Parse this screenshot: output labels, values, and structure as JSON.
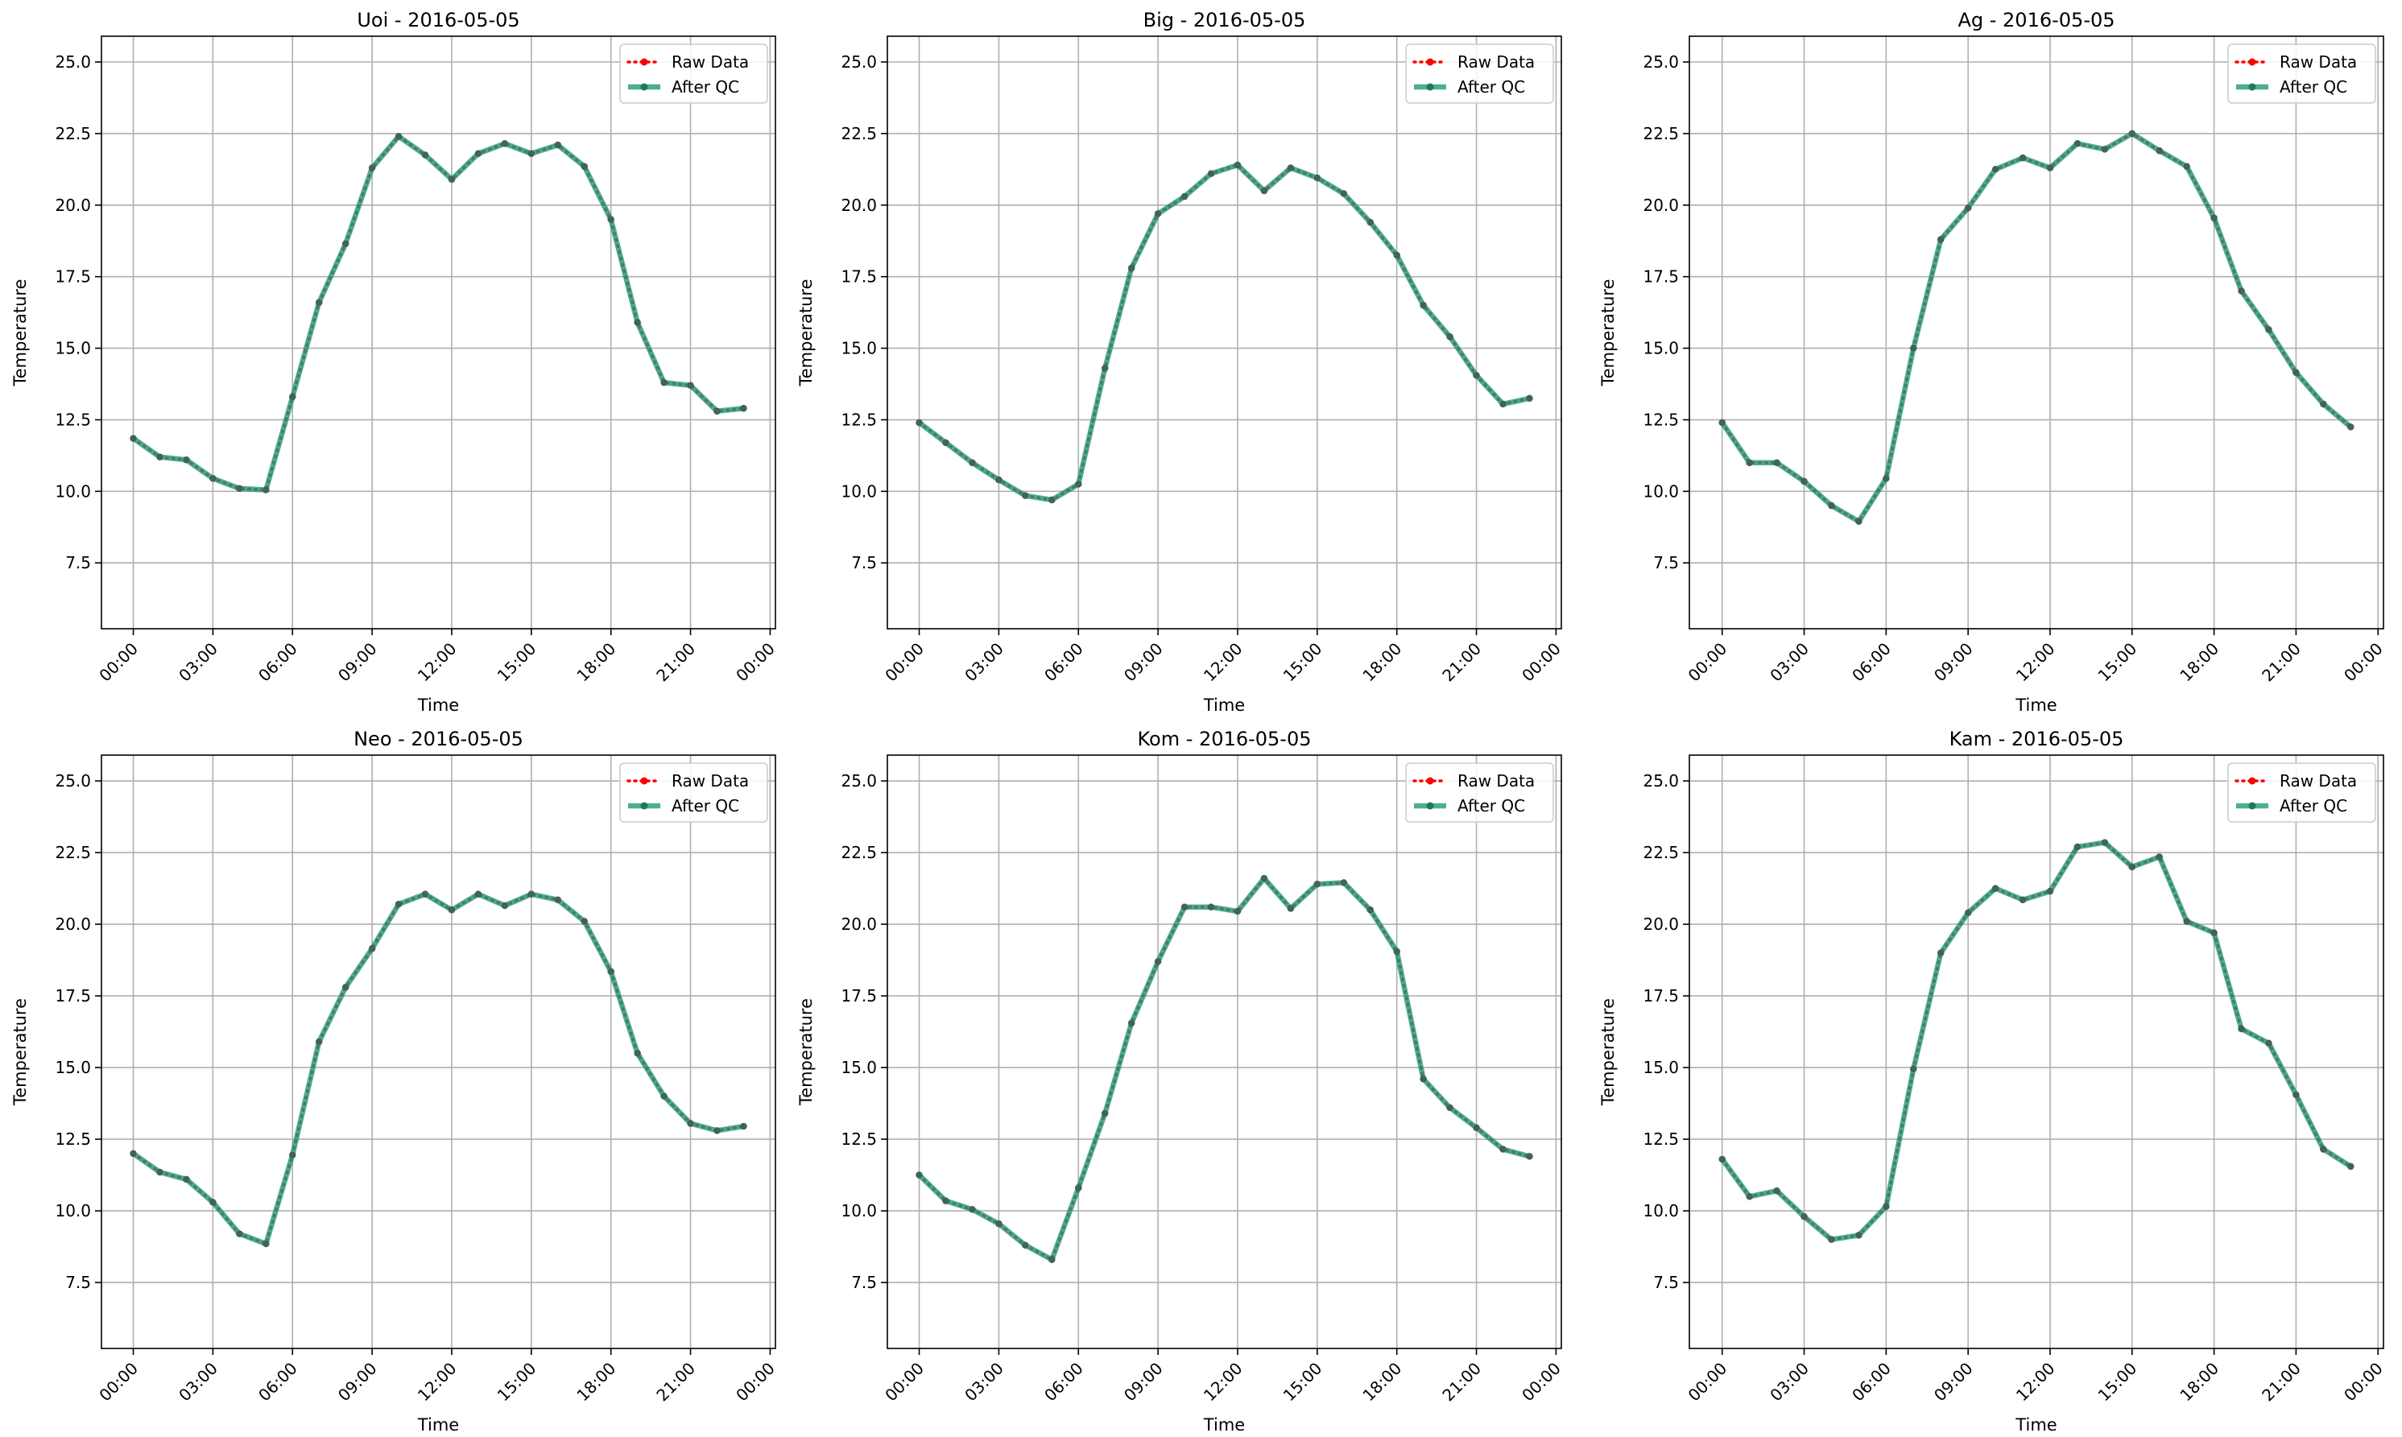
{
  "chart_data": [
    {
      "type": "line",
      "title": "Uoi - 2016-05-05",
      "xlabel": "Time",
      "ylabel": "Temperature",
      "xlim": [
        -1.2,
        24.2
      ],
      "ylim": [
        5.2,
        25.9
      ],
      "x": [
        0,
        1,
        2,
        3,
        4,
        5,
        6,
        7,
        8,
        9,
        10,
        11,
        12,
        13,
        14,
        15,
        16,
        17,
        18,
        19,
        20,
        21,
        22,
        23
      ],
      "x_ticks": [
        "00:00",
        "03:00",
        "06:00",
        "09:00",
        "12:00",
        "15:00",
        "18:00",
        "21:00",
        "00:00"
      ],
      "y_ticks": [
        "7.5",
        "10.0",
        "12.5",
        "15.0",
        "17.5",
        "20.0",
        "22.5",
        "25.0"
      ],
      "grid": true,
      "legend_position": "upper right",
      "series": [
        {
          "name": "Raw Data",
          "color": "#ff0000",
          "style": "dotted-markers",
          "values": [
            11.85,
            11.2,
            11.1,
            10.45,
            10.1,
            10.05,
            13.3,
            16.6,
            18.65,
            21.3,
            22.4,
            21.75,
            20.9,
            21.8,
            22.15,
            21.8,
            22.1,
            21.35,
            19.5,
            15.9,
            13.8,
            13.7,
            12.8,
            12.9
          ]
        },
        {
          "name": "After QC",
          "color": "#1f9a78",
          "style": "solid-markers",
          "values": [
            11.85,
            11.2,
            11.1,
            10.45,
            10.1,
            10.05,
            13.3,
            16.6,
            18.65,
            21.3,
            22.4,
            21.75,
            20.9,
            21.8,
            22.15,
            21.8,
            22.1,
            21.35,
            19.5,
            15.9,
            13.8,
            13.7,
            12.8,
            12.9
          ]
        }
      ]
    },
    {
      "type": "line",
      "title": "Big - 2016-05-05",
      "xlabel": "Time",
      "ylabel": "Temperature",
      "xlim": [
        -1.2,
        24.2
      ],
      "ylim": [
        5.2,
        25.9
      ],
      "x": [
        0,
        1,
        2,
        3,
        4,
        5,
        6,
        7,
        8,
        9,
        10,
        11,
        12,
        13,
        14,
        15,
        16,
        17,
        18,
        19,
        20,
        21,
        22,
        23
      ],
      "x_ticks": [
        "00:00",
        "03:00",
        "06:00",
        "09:00",
        "12:00",
        "15:00",
        "18:00",
        "21:00",
        "00:00"
      ],
      "y_ticks": [
        "7.5",
        "10.0",
        "12.5",
        "15.0",
        "17.5",
        "20.0",
        "22.5",
        "25.0"
      ],
      "grid": true,
      "legend_position": "upper right",
      "series": [
        {
          "name": "Raw Data",
          "color": "#ff0000",
          "style": "dotted-markers",
          "values": [
            12.4,
            11.7,
            11.0,
            10.4,
            9.85,
            9.7,
            10.25,
            14.3,
            17.8,
            19.7,
            20.3,
            21.1,
            21.4,
            20.5,
            21.3,
            20.95,
            20.4,
            19.4,
            18.25,
            16.5,
            15.4,
            14.05,
            13.05,
            13.25
          ]
        },
        {
          "name": "After QC",
          "color": "#1f9a78",
          "style": "solid-markers",
          "values": [
            12.4,
            11.7,
            11.0,
            10.4,
            9.85,
            9.7,
            10.25,
            14.3,
            17.8,
            19.7,
            20.3,
            21.1,
            21.4,
            20.5,
            21.3,
            20.95,
            20.4,
            19.4,
            18.25,
            16.5,
            15.4,
            14.05,
            13.05,
            13.25
          ]
        }
      ]
    },
    {
      "type": "line",
      "title": "Ag - 2016-05-05",
      "xlabel": "Time",
      "ylabel": "Temperature",
      "xlim": [
        -1.2,
        24.2
      ],
      "ylim": [
        5.2,
        25.9
      ],
      "x": [
        0,
        1,
        2,
        3,
        4,
        5,
        6,
        7,
        8,
        9,
        10,
        11,
        12,
        13,
        14,
        15,
        16,
        17,
        18,
        19,
        20,
        21,
        22,
        23
      ],
      "x_ticks": [
        "00:00",
        "03:00",
        "06:00",
        "09:00",
        "12:00",
        "15:00",
        "18:00",
        "21:00",
        "00:00"
      ],
      "y_ticks": [
        "7.5",
        "10.0",
        "12.5",
        "15.0",
        "17.5",
        "20.0",
        "22.5",
        "25.0"
      ],
      "grid": true,
      "legend_position": "upper right",
      "series": [
        {
          "name": "Raw Data",
          "color": "#ff0000",
          "style": "dotted-markers",
          "values": [
            12.4,
            11.0,
            11.0,
            10.35,
            9.5,
            8.95,
            10.45,
            15.0,
            18.8,
            19.9,
            21.25,
            21.65,
            21.3,
            22.15,
            21.95,
            22.5,
            21.9,
            21.35,
            19.55,
            17.0,
            15.65,
            14.15,
            13.05,
            12.25
          ]
        },
        {
          "name": "After QC",
          "color": "#1f9a78",
          "style": "solid-markers",
          "values": [
            12.4,
            11.0,
            11.0,
            10.35,
            9.5,
            8.95,
            10.45,
            15.0,
            18.8,
            19.9,
            21.25,
            21.65,
            21.3,
            22.15,
            21.95,
            22.5,
            21.9,
            21.35,
            19.55,
            17.0,
            15.65,
            14.15,
            13.05,
            12.25
          ]
        }
      ]
    },
    {
      "type": "line",
      "title": "Neo - 2016-05-05",
      "xlabel": "Time",
      "ylabel": "Temperature",
      "xlim": [
        -1.2,
        24.2
      ],
      "ylim": [
        5.2,
        25.9
      ],
      "x": [
        0,
        1,
        2,
        3,
        4,
        5,
        6,
        7,
        8,
        9,
        10,
        11,
        12,
        13,
        14,
        15,
        16,
        17,
        18,
        19,
        20,
        21,
        22,
        23
      ],
      "x_ticks": [
        "00:00",
        "03:00",
        "06:00",
        "09:00",
        "12:00",
        "15:00",
        "18:00",
        "21:00",
        "00:00"
      ],
      "y_ticks": [
        "7.5",
        "10.0",
        "12.5",
        "15.0",
        "17.5",
        "20.0",
        "22.5",
        "25.0"
      ],
      "grid": true,
      "legend_position": "upper right",
      "series": [
        {
          "name": "Raw Data",
          "color": "#ff0000",
          "style": "dotted-markers",
          "values": [
            12.0,
            11.35,
            11.1,
            10.3,
            9.2,
            8.85,
            11.95,
            15.9,
            17.8,
            19.15,
            20.7,
            21.05,
            20.5,
            21.05,
            20.65,
            21.05,
            20.85,
            20.1,
            18.35,
            15.5,
            14.0,
            13.05,
            12.8,
            12.95
          ]
        },
        {
          "name": "After QC",
          "color": "#1f9a78",
          "style": "solid-markers",
          "values": [
            12.0,
            11.35,
            11.1,
            10.3,
            9.2,
            8.85,
            11.95,
            15.9,
            17.8,
            19.15,
            20.7,
            21.05,
            20.5,
            21.05,
            20.65,
            21.05,
            20.85,
            20.1,
            18.35,
            15.5,
            14.0,
            13.05,
            12.8,
            12.95
          ]
        }
      ]
    },
    {
      "type": "line",
      "title": "Kom - 2016-05-05",
      "xlabel": "Time",
      "ylabel": "Temperature",
      "xlim": [
        -1.2,
        24.2
      ],
      "ylim": [
        5.2,
        25.9
      ],
      "x": [
        0,
        1,
        2,
        3,
        4,
        5,
        6,
        7,
        8,
        9,
        10,
        11,
        12,
        13,
        14,
        15,
        16,
        17,
        18,
        19,
        20,
        21,
        22,
        23
      ],
      "x_ticks": [
        "00:00",
        "03:00",
        "06:00",
        "09:00",
        "12:00",
        "15:00",
        "18:00",
        "21:00",
        "00:00"
      ],
      "y_ticks": [
        "7.5",
        "10.0",
        "12.5",
        "15.0",
        "17.5",
        "20.0",
        "22.5",
        "25.0"
      ],
      "grid": true,
      "legend_position": "upper right",
      "series": [
        {
          "name": "Raw Data",
          "color": "#ff0000",
          "style": "dotted-markers",
          "values": [
            11.25,
            10.35,
            10.05,
            9.55,
            8.8,
            8.3,
            10.8,
            13.4,
            16.55,
            18.7,
            20.6,
            20.6,
            20.45,
            21.6,
            20.55,
            21.4,
            21.45,
            20.5,
            19.05,
            14.6,
            13.6,
            12.9,
            12.15,
            11.9
          ]
        },
        {
          "name": "After QC",
          "color": "#1f9a78",
          "style": "solid-markers",
          "values": [
            11.25,
            10.35,
            10.05,
            9.55,
            8.8,
            8.3,
            10.8,
            13.4,
            16.55,
            18.7,
            20.6,
            20.6,
            20.45,
            21.6,
            20.55,
            21.4,
            21.45,
            20.5,
            19.05,
            14.6,
            13.6,
            12.9,
            12.15,
            11.9
          ]
        }
      ]
    },
    {
      "type": "line",
      "title": "Kam - 2016-05-05",
      "xlabel": "Time",
      "ylabel": "Temperature",
      "xlim": [
        -1.2,
        24.2
      ],
      "ylim": [
        5.2,
        25.9
      ],
      "x": [
        0,
        1,
        2,
        3,
        4,
        5,
        6,
        7,
        8,
        9,
        10,
        11,
        12,
        13,
        14,
        15,
        16,
        17,
        18,
        19,
        20,
        21,
        22,
        23
      ],
      "x_ticks": [
        "00:00",
        "03:00",
        "06:00",
        "09:00",
        "12:00",
        "15:00",
        "18:00",
        "21:00",
        "00:00"
      ],
      "y_ticks": [
        "7.5",
        "10.0",
        "12.5",
        "15.0",
        "17.5",
        "20.0",
        "22.5",
        "25.0"
      ],
      "grid": true,
      "legend_position": "upper right",
      "series": [
        {
          "name": "Raw Data",
          "color": "#ff0000",
          "style": "dotted-markers",
          "values": [
            11.8,
            10.5,
            10.7,
            9.8,
            9.0,
            9.15,
            10.15,
            14.95,
            19.0,
            20.4,
            21.25,
            20.85,
            21.15,
            22.7,
            22.85,
            22.0,
            22.35,
            20.1,
            19.7,
            16.35,
            15.85,
            14.05,
            12.15,
            11.55
          ]
        },
        {
          "name": "After QC",
          "color": "#1f9a78",
          "style": "solid-markers",
          "values": [
            11.8,
            10.5,
            10.7,
            9.8,
            9.0,
            9.15,
            10.15,
            14.95,
            19.0,
            20.4,
            21.25,
            20.85,
            21.15,
            22.7,
            22.85,
            22.0,
            22.35,
            20.1,
            19.7,
            16.35,
            15.85,
            14.05,
            12.15,
            11.55
          ]
        }
      ]
    }
  ]
}
